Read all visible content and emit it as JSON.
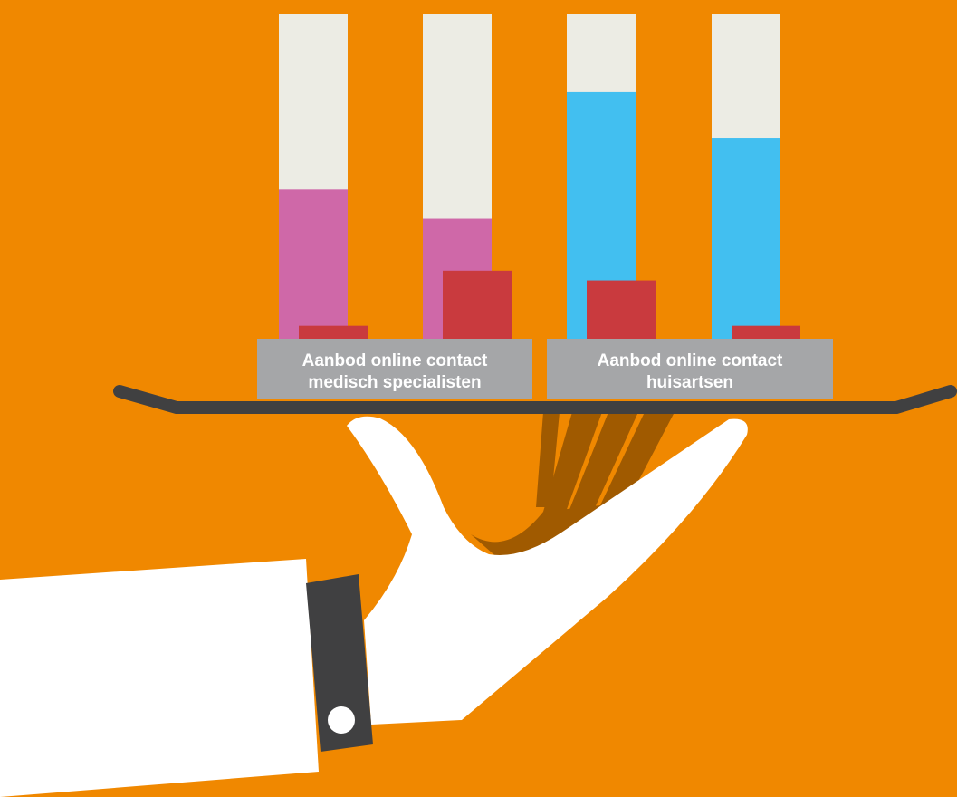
{
  "chart_data": {
    "type": "bar",
    "groups": [
      {
        "label_line1": "Aanbod online contact",
        "label_line2": "medisch specialisten",
        "bars": [
          {
            "fill_fraction": 0.46,
            "inner_fraction": 0.04
          },
          {
            "fill_fraction": 0.37,
            "inner_fraction": 0.21
          }
        ],
        "fill_color": "#cf68a8"
      },
      {
        "label_line1": "Aanbod online contact",
        "label_line2": "huisartsen",
        "bars": [
          {
            "fill_fraction": 0.76,
            "inner_fraction": 0.18
          },
          {
            "fill_fraction": 0.62,
            "inner_fraction": 0.04
          }
        ],
        "fill_color": "#42bff0"
      }
    ],
    "empty_color": "#ecece4",
    "inner_color": "#c93a3e",
    "background_color": "#f08800",
    "label_box_color": "#a5a6a8",
    "grid": false,
    "legend": "none"
  },
  "colors": {
    "tray": "#404041",
    "hand": "#ffffff",
    "fingers": "#a05a00",
    "cuff": "#404041"
  }
}
